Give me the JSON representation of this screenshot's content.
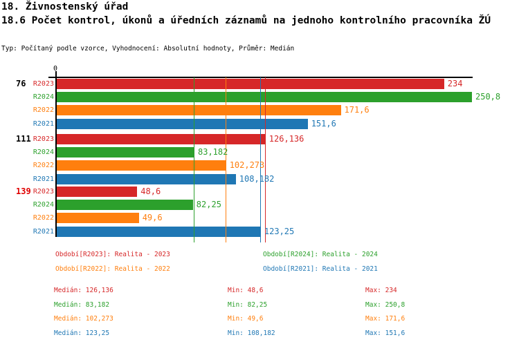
{
  "page": {
    "title": "18. Živnostenský úřad",
    "subtitle": "18.6 Počet kontrol, úkonů a úředních záznamů na jednoho kontrolního pracovníka ŽÚ",
    "meta": "Typ: Počítaný podle vzorce, Vyhodnocení: Absolutní hodnoty, Průměr: Medián"
  },
  "colors": {
    "r2023": "#d62728",
    "r2024": "#2ca02c",
    "r2022": "#ff7f0e",
    "r2021": "#1f77b4",
    "axis": "#000000",
    "group_label_default": "#000000",
    "group_label_highlight": "#e00000"
  },
  "chart_data": {
    "type": "bar",
    "orientation": "horizontal",
    "title": "18.6 Počet kontrol, úkonů a úředních záznamů na jednoho kontrolního pracovníka ŽÚ",
    "axis_origin_label": "0",
    "xlim": [
      0,
      250.8
    ],
    "grid": false,
    "legend_position": "bottom",
    "series": [
      "R2023",
      "R2024",
      "R2022",
      "R2021"
    ],
    "groups": [
      {
        "label": "76",
        "highlight": false,
        "bars": [
          {
            "series": "R2023",
            "value": 234,
            "display": "234"
          },
          {
            "series": "R2024",
            "value": 250.8,
            "display": "250,8"
          },
          {
            "series": "R2022",
            "value": 171.6,
            "display": "171,6"
          },
          {
            "series": "R2021",
            "value": 151.6,
            "display": "151,6"
          }
        ]
      },
      {
        "label": "111",
        "highlight": false,
        "bars": [
          {
            "series": "R2023",
            "value": 126.136,
            "display": "126,136"
          },
          {
            "series": "R2024",
            "value": 83.182,
            "display": "83,182"
          },
          {
            "series": "R2022",
            "value": 102.273,
            "display": "102,273"
          },
          {
            "series": "R2021",
            "value": 108.182,
            "display": "108,182"
          }
        ]
      },
      {
        "label": "139",
        "highlight": true,
        "bars": [
          {
            "series": "R2023",
            "value": 48.6,
            "display": "48,6"
          },
          {
            "series": "R2024",
            "value": 82.25,
            "display": "82,25"
          },
          {
            "series": "R2022",
            "value": 49.6,
            "display": "49,6"
          },
          {
            "series": "R2021",
            "value": 123.25,
            "display": "123,25"
          }
        ]
      }
    ],
    "median_lines": [
      {
        "series": "R2023",
        "value": 126.136
      },
      {
        "series": "R2024",
        "value": 83.182
      },
      {
        "series": "R2022",
        "value": 102.273
      },
      {
        "series": "R2021",
        "value": 123.25
      }
    ]
  },
  "legend": [
    {
      "series": "R2023",
      "label": "Období[R2023]: Realita - 2023"
    },
    {
      "series": "R2024",
      "label": "Období[R2024]: Realita - 2024"
    },
    {
      "series": "R2022",
      "label": "Období[R2022]: Realita - 2022"
    },
    {
      "series": "R2021",
      "label": "Období[R2021]: Realita - 2021"
    }
  ],
  "stats": [
    {
      "series": "R2023",
      "median": "Medián: 126,136",
      "min": "Min: 48,6",
      "max": "Max: 234"
    },
    {
      "series": "R2024",
      "median": "Medián: 83,182",
      "min": "Min: 82,25",
      "max": "Max: 250,8"
    },
    {
      "series": "R2022",
      "median": "Medián: 102,273",
      "min": "Min: 49,6",
      "max": "Max: 171,6"
    },
    {
      "series": "R2021",
      "median": "Medián: 123,25",
      "min": "Min: 108,182",
      "max": "Max: 151,6"
    }
  ]
}
